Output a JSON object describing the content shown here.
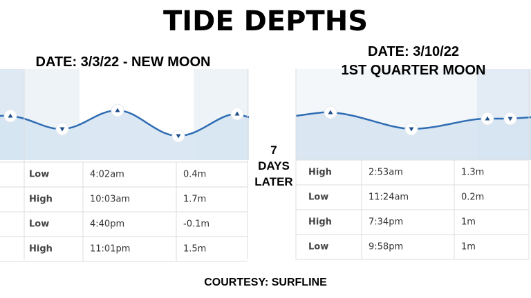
{
  "title": "TIDE DEPTHS",
  "panels": [
    {
      "heading": [
        "DATE: 3/3/22 - NEW MOON"
      ],
      "rows": [
        [
          "Low",
          "4:02am",
          "0.4m"
        ],
        [
          "High",
          "10:03am",
          "1.7m"
        ],
        [
          "Low",
          "4:40pm",
          "-0.1m"
        ],
        [
          "High",
          "11:01pm",
          "1.5m"
        ]
      ]
    },
    {
      "heading": [
        "DATE: 3/10/22",
        "1ST QUARTER MOON"
      ],
      "rows": [
        [
          "High",
          "2:53am",
          "1.3m"
        ],
        [
          "Low",
          "11:24am",
          "0.2m"
        ],
        [
          "High",
          "7:34pm",
          "1m"
        ],
        [
          "Low",
          "9:58pm",
          "1m"
        ]
      ]
    }
  ],
  "middle": [
    "7",
    "DAYS",
    "LATER"
  ],
  "footer": "COURTESY: SURFLINE"
}
